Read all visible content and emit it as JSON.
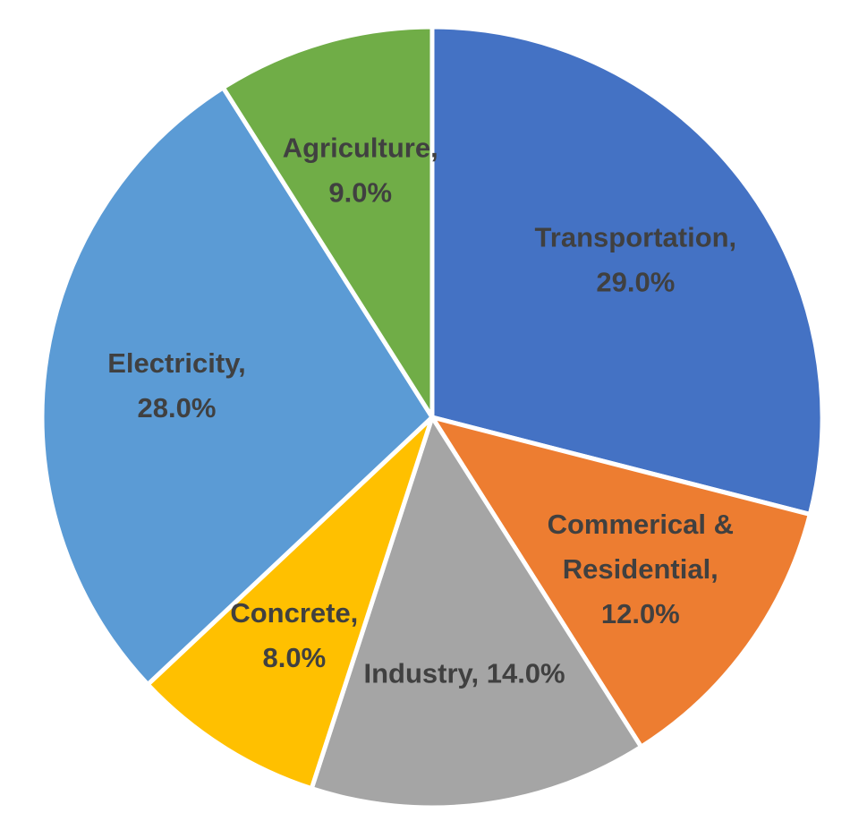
{
  "chart_data": {
    "type": "pie",
    "start_angle_deg": 0,
    "direction": "clockwise",
    "slices": [
      {
        "label": "Transportation",
        "value": 29.0,
        "display": [
          "Transportation,",
          "29.0%"
        ],
        "color": "#4472C4"
      },
      {
        "label": "Commerical & Residential",
        "value": 12.0,
        "display": [
          "Commerical &",
          "Residential,",
          "12.0%"
        ],
        "color": "#ED7D31"
      },
      {
        "label": "Industry",
        "value": 14.0,
        "display": [
          "Industry, 14.0%"
        ],
        "color": "#A5A5A5"
      },
      {
        "label": "Concrete",
        "value": 8.0,
        "display": [
          "Concrete,",
          "8.0%"
        ],
        "color": "#FFC000"
      },
      {
        "label": "Electricity",
        "value": 28.0,
        "display": [
          "Electricity,",
          "28.0%"
        ],
        "color": "#5B9BD5"
      },
      {
        "label": "Agriculture",
        "value": 9.0,
        "display": [
          "Agriculture,",
          "9.0%"
        ],
        "color": "#70AD47"
      }
    ]
  }
}
